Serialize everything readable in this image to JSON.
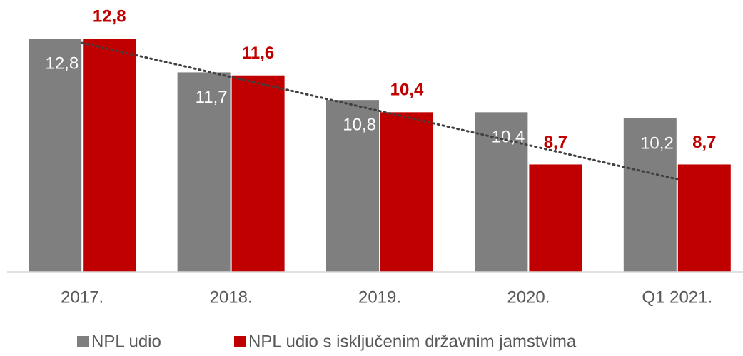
{
  "chart_data": {
    "type": "bar",
    "categories": [
      "2017.",
      "2018.",
      "2019.",
      "2020.",
      "Q1 2021."
    ],
    "series": [
      {
        "name": "NPL udio",
        "color": "#7f7f7f",
        "values": [
          12.8,
          11.7,
          10.8,
          10.4,
          10.2
        ],
        "value_labels": [
          "12,8",
          "11,7",
          "10,8",
          "10,4",
          "10,2"
        ]
      },
      {
        "name": "NPL udio s isključenim državnim jamstvima",
        "color": "#c00000",
        "values": [
          12.8,
          11.6,
          10.4,
          8.7,
          8.7
        ],
        "value_labels": [
          "12,8",
          "11,6",
          "10,4",
          "8,7",
          "8,7"
        ],
        "trendline": "linear"
      }
    ],
    "ylim": [
      5.2,
      13.5
    ],
    "legend": "bottom"
  }
}
